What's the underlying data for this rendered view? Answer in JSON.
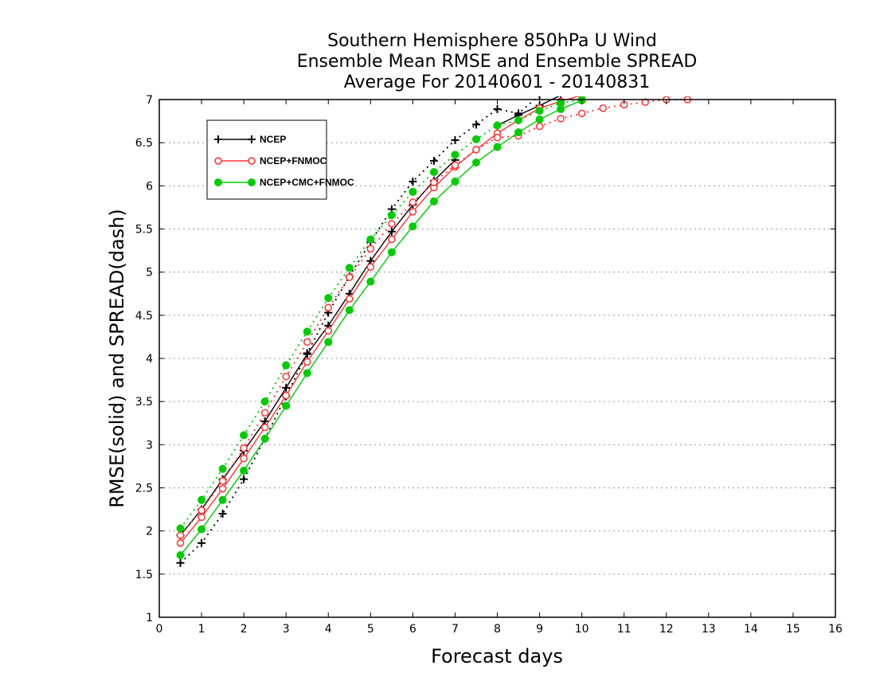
{
  "chart_data": {
    "type": "line",
    "title_lines": [
      "Southern Hemisphere 850hPa U Wind",
      "Ensemble Mean RMSE and Ensemble SPREAD",
      "Average For 20140601 - 20140831"
    ],
    "xlabel": "Forecast days",
    "ylabel": "RMSE(solid) and SPREAD(dash)",
    "xlim": [
      0,
      16
    ],
    "ylim": [
      1,
      7
    ],
    "x_ticks": [
      "0",
      "1",
      "2",
      "3",
      "4",
      "5",
      "6",
      "7",
      "8",
      "9",
      "10",
      "11",
      "12",
      "13",
      "14",
      "15",
      "16"
    ],
    "y_ticks": [
      "1",
      "1.5",
      "2",
      "2.5",
      "3",
      "3.5",
      "4",
      "4.5",
      "5",
      "5.5",
      "6",
      "6.5",
      "7"
    ],
    "grid": "horizontal-dotted",
    "legend": {
      "position": "top-left",
      "entries": [
        "NCEP",
        "NCEP+FNMOC",
        "NCEP+CMC+FNMOC"
      ]
    },
    "x": [
      0.5,
      1.0,
      1.5,
      2.0,
      2.5,
      3.0,
      3.5,
      4.0,
      4.5,
      5.0,
      5.5,
      6.0,
      6.5,
      7.0,
      7.5,
      8.0,
      8.5,
      9.0,
      9.5,
      10.0,
      10.5,
      11.0,
      11.5,
      12.0,
      12.5
    ],
    "series": [
      {
        "name": "NCEP",
        "style": "solid",
        "marker": "plus",
        "color": "#000000",
        "values": [
          1.95,
          2.25,
          2.6,
          2.93,
          3.27,
          3.66,
          4.05,
          4.38,
          4.75,
          5.13,
          5.47,
          5.78,
          6.06,
          6.3,
          null,
          6.7,
          6.82,
          6.93,
          7.05,
          null,
          null,
          null,
          null,
          null,
          null
        ]
      },
      {
        "name": "NCEP",
        "style": "dash",
        "marker": "plus",
        "color": "#000000",
        "values": [
          1.63,
          1.86,
          2.2,
          2.6,
          3.07,
          3.56,
          4.06,
          4.53,
          4.95,
          5.35,
          5.73,
          6.05,
          6.29,
          6.53,
          6.71,
          6.89,
          6.84,
          7.05,
          null,
          null,
          null,
          null,
          null,
          null,
          null
        ]
      },
      {
        "name": "NCEP+FNMOC",
        "style": "solid",
        "marker": "open-circle",
        "color": "#ff3333",
        "values": [
          1.86,
          2.16,
          2.49,
          2.84,
          3.2,
          3.57,
          3.96,
          4.32,
          4.69,
          5.06,
          5.38,
          5.7,
          5.98,
          6.22,
          6.42,
          6.61,
          6.76,
          6.9,
          6.98,
          7.05,
          null,
          null,
          null,
          null,
          null
        ]
      },
      {
        "name": "NCEP+FNMOC",
        "style": "dash",
        "marker": "open-circle",
        "color": "#ff3333",
        "values": [
          1.95,
          2.24,
          2.58,
          2.96,
          3.37,
          3.79,
          4.19,
          4.59,
          4.94,
          5.27,
          5.56,
          5.81,
          6.04,
          6.24,
          6.42,
          6.56,
          6.58,
          6.69,
          6.78,
          6.84,
          6.9,
          6.94,
          6.97,
          7.0,
          7.0
        ]
      },
      {
        "name": "NCEP+CMC+FNMOC",
        "style": "solid",
        "marker": "filled-circle",
        "color": "#00cc00",
        "values": [
          1.72,
          2.02,
          2.36,
          2.7,
          3.07,
          3.45,
          3.83,
          4.19,
          4.56,
          4.89,
          5.23,
          5.53,
          5.82,
          6.05,
          6.27,
          6.45,
          6.62,
          6.77,
          6.89,
          6.99,
          null,
          null,
          null,
          null,
          null
        ]
      },
      {
        "name": "NCEP+CMC+FNMOC",
        "style": "dash",
        "marker": "filled-circle",
        "color": "#00cc00",
        "values": [
          2.03,
          2.36,
          2.72,
          3.11,
          3.5,
          3.92,
          4.31,
          4.7,
          5.05,
          5.38,
          5.66,
          5.93,
          6.16,
          6.36,
          6.54,
          6.7,
          6.76,
          6.87,
          6.96,
          7.0,
          null,
          null,
          null,
          null,
          null
        ]
      }
    ]
  }
}
